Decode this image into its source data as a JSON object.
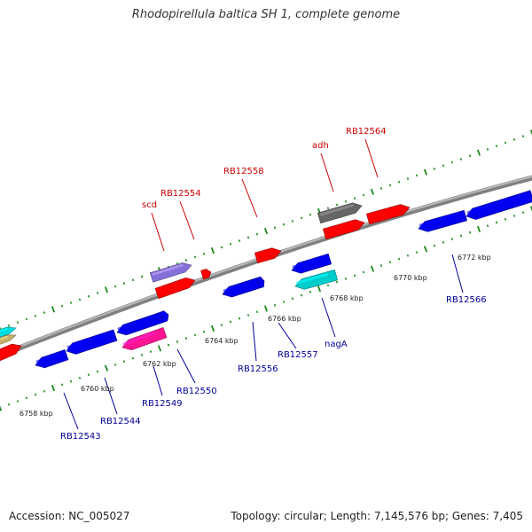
{
  "title": "Rhodopirellula baltica SH 1, complete genome",
  "footer": {
    "accession": "Accession: NC_005027",
    "topology": "Topology: circular; Length: 7,145,576 bp; Genes: 7,405"
  },
  "colors": {
    "forward_label": "#cc0000",
    "reverse_label": "#000099",
    "backbone": "#8c8c8c",
    "scale_dots": "#1a8a1a"
  },
  "axis": {
    "tick_labels": [
      "6758 kbp",
      "6760 kbp",
      "6762 kbp",
      "6764 kbp",
      "6766 kbp",
      "6768 kbp",
      "6770 kbp",
      "6772 kbp"
    ]
  },
  "genes": {
    "forward": [
      {
        "label": "scd",
        "color": "#8470d8"
      },
      {
        "label": "RB12554",
        "color": "#ff0000"
      },
      {
        "label": "RB12558",
        "color": "#ff0000"
      },
      {
        "label": "adh",
        "color": "#666666"
      },
      {
        "label": "RB12564",
        "color": "#ff0000"
      }
    ],
    "reverse": [
      {
        "label": "RB12543",
        "color": "#0000ee"
      },
      {
        "label": "RB12544",
        "color": "#0000ee"
      },
      {
        "label": "RB12549",
        "color": "#ff1493"
      },
      {
        "label": "RB12550",
        "color": "#0000ee"
      },
      {
        "label": "RB12556",
        "color": "#0000ee"
      },
      {
        "label": "RB12557",
        "color": "#0000ee"
      },
      {
        "label": "nagA",
        "color": "#00cccc"
      },
      {
        "label": "RB12566",
        "color": "#0000ee"
      }
    ]
  }
}
